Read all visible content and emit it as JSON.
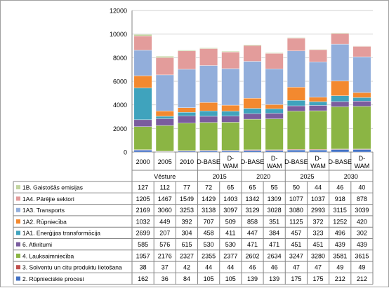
{
  "chart_data": {
    "type": "stacked-bar-with-data-table",
    "title": "",
    "xlabel": "",
    "ylabel": "",
    "ylim": [
      0,
      12000
    ],
    "yticks": [
      0,
      2000,
      4000,
      6000,
      8000,
      10000,
      12000
    ],
    "grid": true,
    "legend": "data-table-below",
    "categories": [
      "2000",
      "2005",
      "2010",
      "D-BASE",
      "D-WAM",
      "D-BASE",
      "D-WAM",
      "D-BASE",
      "D-WAM",
      "D-BASE",
      "D-WAM"
    ],
    "category_label_lines": [
      [
        "2000"
      ],
      [
        "2005"
      ],
      [
        "2010"
      ],
      [
        "D-BASE"
      ],
      [
        "D-",
        "WAM"
      ],
      [
        "D-BASE"
      ],
      [
        "D-",
        "WAM"
      ],
      [
        "D-BASE"
      ],
      [
        "D-",
        "WAM"
      ],
      [
        "D-BASE"
      ],
      [
        "D-",
        "WAM"
      ]
    ],
    "groups": [
      {
        "label": "Vēsture",
        "span": 3
      },
      {
        "label": "2015",
        "span": 2
      },
      {
        "label": "2020",
        "span": 2
      },
      {
        "label": "2025",
        "span": 2
      },
      {
        "label": "2030",
        "span": 2
      }
    ],
    "series": [
      {
        "name": "2. Rūpnieciskie procesi",
        "color": "#4472c4",
        "values": [
          162,
          36,
          84,
          105,
          105,
          139,
          139,
          175,
          175,
          212,
          212
        ]
      },
      {
        "name": "3. Solventu un citu produktu lietošana",
        "color": "#c0504d",
        "values": [
          38,
          37,
          42,
          44,
          44,
          46,
          46,
          47,
          47,
          49,
          49
        ]
      },
      {
        "name": "4. Lauksaimniecība",
        "color": "#8bb544",
        "values": [
          1957,
          2176,
          2327,
          2355,
          2377,
          2602,
          2634,
          3247,
          3280,
          3581,
          3615
        ]
      },
      {
        "name": "6. Atkritumi",
        "color": "#7a5c9e",
        "values": [
          585,
          576,
          615,
          530,
          530,
          471,
          471,
          451,
          451,
          439,
          439
        ]
      },
      {
        "name": "1A1. Enerģijas transformācija",
        "color": "#3fa3bd",
        "values": [
          2699,
          207,
          304,
          458,
          411,
          447,
          384,
          457,
          323,
          496,
          302
        ]
      },
      {
        "name": "1A2. Rūpniecība",
        "color": "#f3892f",
        "values": [
          1032,
          449,
          392,
          707,
          509,
          858,
          351,
          1125,
          372,
          1252,
          420
        ]
      },
      {
        "name": "1A3. Transports",
        "color": "#92aedb",
        "values": [
          2169,
          3060,
          3253,
          3138,
          3097,
          3129,
          3028,
          3080,
          2993,
          3115,
          3039
        ]
      },
      {
        "name": "1A4. Pārējie sektori",
        "color": "#e39c9b",
        "values": [
          1205,
          1467,
          1549,
          1429,
          1403,
          1342,
          1309,
          1077,
          1037,
          918,
          878
        ]
      },
      {
        "name": "1B. Gaistošās emisijas",
        "color": "#c2d5a0",
        "values": [
          127,
          112,
          77,
          72,
          65,
          65,
          55,
          50,
          44,
          46,
          40
        ]
      }
    ]
  }
}
